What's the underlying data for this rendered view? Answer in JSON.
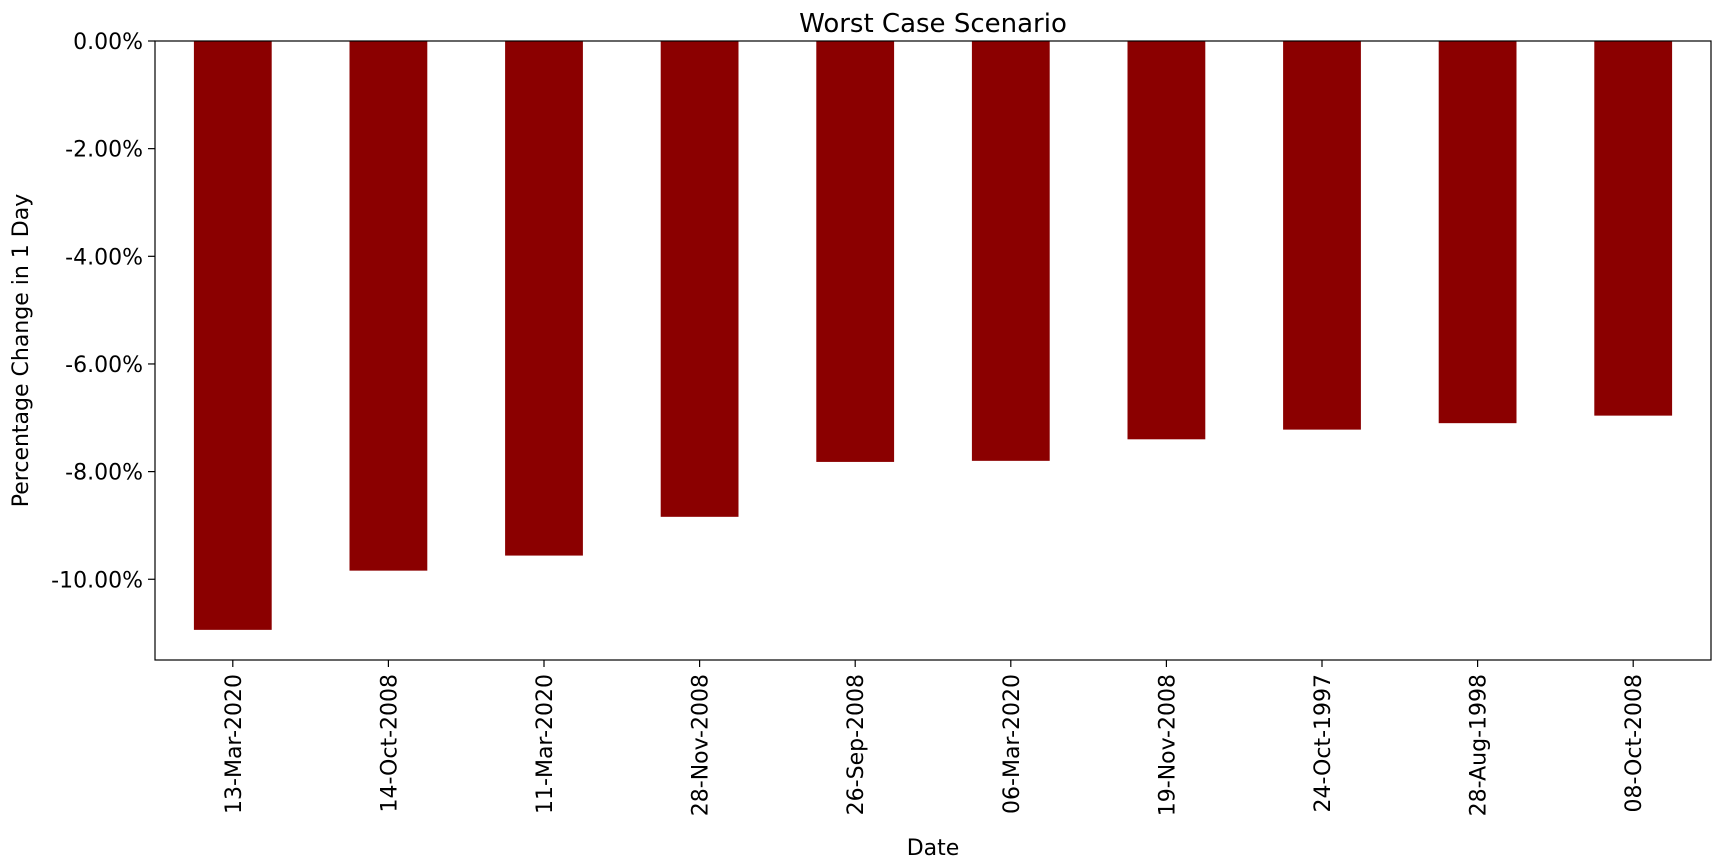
{
  "chart_data": {
    "type": "bar",
    "title": "Worst Case Scenario",
    "xlabel": "Date",
    "ylabel": "Percentage Change in 1 Day",
    "categories": [
      "13-Mar-2020",
      "14-Oct-2008",
      "11-Mar-2020",
      "28-Nov-2008",
      "26-Sep-2008",
      "06-Mar-2020",
      "19-Nov-2008",
      "24-Oct-1997",
      "28-Aug-1998",
      "08-Oct-2008"
    ],
    "values": [
      -10.94,
      -9.84,
      -9.56,
      -8.84,
      -7.82,
      -7.8,
      -7.4,
      -7.22,
      -7.1,
      -6.96
    ],
    "ylim": [
      -11.5,
      0
    ],
    "yticks": [
      0,
      -2,
      -4,
      -6,
      -8,
      -10
    ],
    "ytick_labels": [
      "0.00%",
      "-2.00%",
      "-4.00%",
      "-6.00%",
      "-8.00%",
      "-10.00%"
    ],
    "bar_color": "#8b0000",
    "grid": false,
    "legend": "none"
  }
}
